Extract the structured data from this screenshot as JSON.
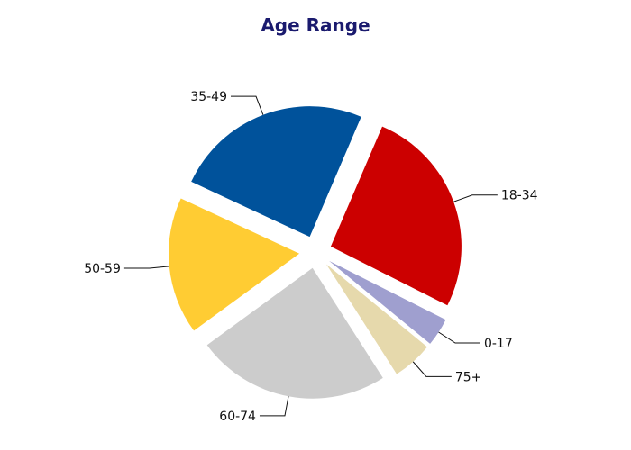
{
  "chart_data": {
    "type": "pie",
    "title": "Age Range",
    "slices": [
      {
        "label": "35-49",
        "value": 24.5,
        "color": "#00529b"
      },
      {
        "label": "18-34",
        "value": 26.0,
        "color": "#cc0000"
      },
      {
        "label": "0-17",
        "value": 3.5,
        "color": "#9f9fcf"
      },
      {
        "label": "75+",
        "value": 5.0,
        "color": "#e6d9ac"
      },
      {
        "label": "60-74",
        "value": 24.0,
        "color": "#cccccc"
      },
      {
        "label": "50-59",
        "value": 17.0,
        "color": "#ffcc33"
      }
    ],
    "exploded": true,
    "label_style": "outside-with-leader-lines"
  }
}
